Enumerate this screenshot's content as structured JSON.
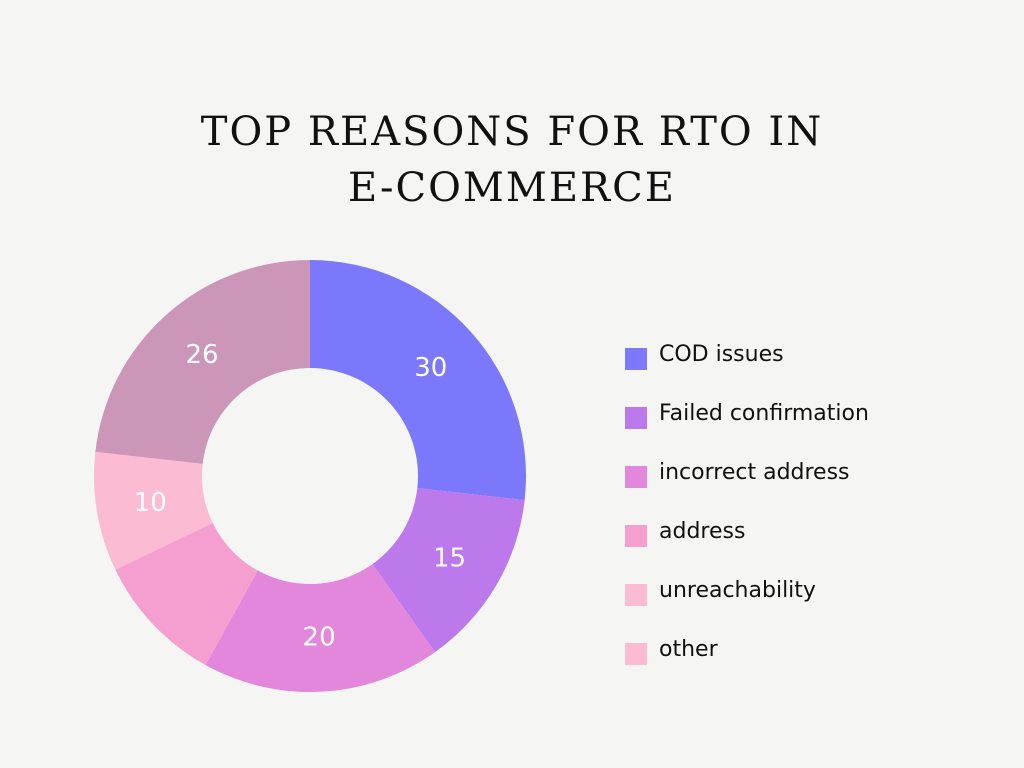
{
  "title_lines": [
    "TOP REASONS FOR RTO IN",
    "E-COMMERCE"
  ],
  "chart_data": {
    "type": "pie",
    "donut": true,
    "start_angle_deg": 0,
    "direction": "clockwise",
    "slices": [
      {
        "label": "COD issues",
        "value": 30,
        "display": "30",
        "color": "#7b78fb"
      },
      {
        "label": "Failed confirmation",
        "value": 15,
        "display": "15",
        "color": "#bc79ec"
      },
      {
        "label": "incorrect address",
        "value": 20,
        "display": "20",
        "color": "#e287dc"
      },
      {
        "label": "address",
        "value": 11,
        "display": "",
        "color": "#f59fd0"
      },
      {
        "label": "unreachability",
        "value": 10,
        "display": "10",
        "color": "#fbbbd3"
      },
      {
        "label": "other",
        "value": 26,
        "display": "26",
        "color": "#cb96b8"
      }
    ],
    "legend_position": "right"
  },
  "legend": [
    {
      "label": "COD issues",
      "color": "#7b78fb"
    },
    {
      "label": "Failed confirmation",
      "color": "#bc79ec"
    },
    {
      "label": "incorrect address",
      "color": "#e287dc"
    },
    {
      "label": "address",
      "color": "#f59fd0"
    },
    {
      "label": "unreachability",
      "color": "#fbbbd3"
    },
    {
      "label": "other",
      "color": "#fbbbd3"
    }
  ]
}
